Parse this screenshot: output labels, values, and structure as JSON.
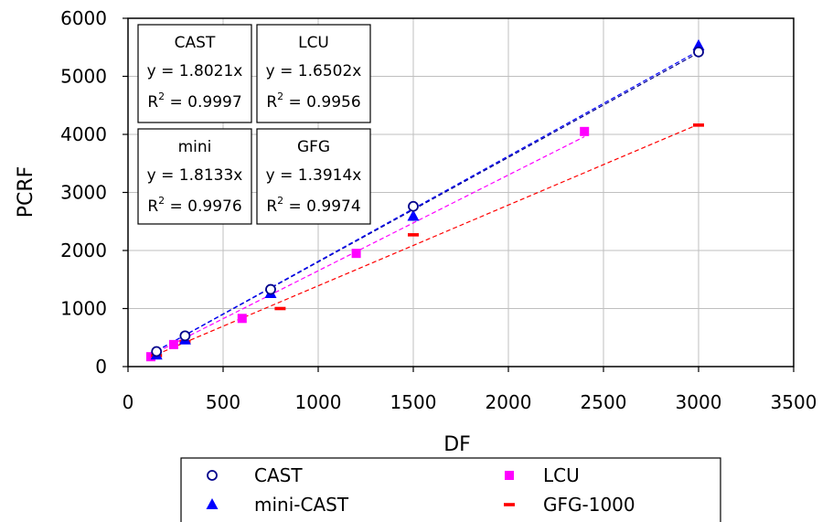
{
  "chart_data": {
    "type": "scatter",
    "xlabel": "DF",
    "ylabel": "PCRF",
    "xlim": [
      0,
      3500
    ],
    "ylim": [
      0,
      6000
    ],
    "x_ticks": [
      0,
      500,
      1000,
      1500,
      2000,
      2500,
      3000,
      3500
    ],
    "y_ticks": [
      0,
      1000,
      2000,
      3000,
      4000,
      5000,
      6000
    ],
    "grid": true,
    "legend_position": "bottom",
    "series": [
      {
        "name": "CAST",
        "marker": "open-circle",
        "color": "#00008b",
        "x": [
          150,
          300,
          750,
          1500,
          3000
        ],
        "y": [
          260,
          530,
          1330,
          2760,
          5420
        ],
        "fit_slope": 1.8021,
        "fit_color": "#00008b"
      },
      {
        "name": "LCU",
        "marker": "square",
        "color": "#ff00ff",
        "x": [
          120,
          240,
          600,
          1200,
          2400
        ],
        "y": [
          170,
          380,
          830,
          1950,
          4050
        ],
        "fit_slope": 1.6502,
        "fit_color": "#ff00ff"
      },
      {
        "name": "mini-CAST",
        "marker": "triangle",
        "color": "#0000ff",
        "x": [
          150,
          300,
          750,
          1500,
          3000
        ],
        "y": [
          200,
          460,
          1260,
          2590,
          5530
        ],
        "fit_slope": 1.8133,
        "fit_color": "#0000ff"
      },
      {
        "name": "GFG-1000",
        "marker": "dash",
        "color": "#ff0000",
        "x": [
          150,
          300,
          800,
          1500,
          3000
        ],
        "y": [
          190,
          430,
          1000,
          2270,
          4160
        ],
        "fit_slope": 1.3914,
        "fit_color": "#ff0000"
      }
    ],
    "annotations": [
      {
        "title": "CAST",
        "equation": "y = 1.8021x",
        "r2_prefix": "R",
        "r2_sup": "2",
        "r2_value": " = 0.9997"
      },
      {
        "title": "LCU",
        "equation": "y = 1.6502x",
        "r2_prefix": "R",
        "r2_sup": "2",
        "r2_value": " = 0.9956"
      },
      {
        "title": "mini",
        "equation": "y = 1.8133x",
        "r2_prefix": "R",
        "r2_sup": "2",
        "r2_value": " = 0.9976"
      },
      {
        "title": "GFG",
        "equation": "y = 1.3914x",
        "r2_prefix": "R",
        "r2_sup": "2",
        "r2_value": " = 0.9974"
      }
    ]
  }
}
